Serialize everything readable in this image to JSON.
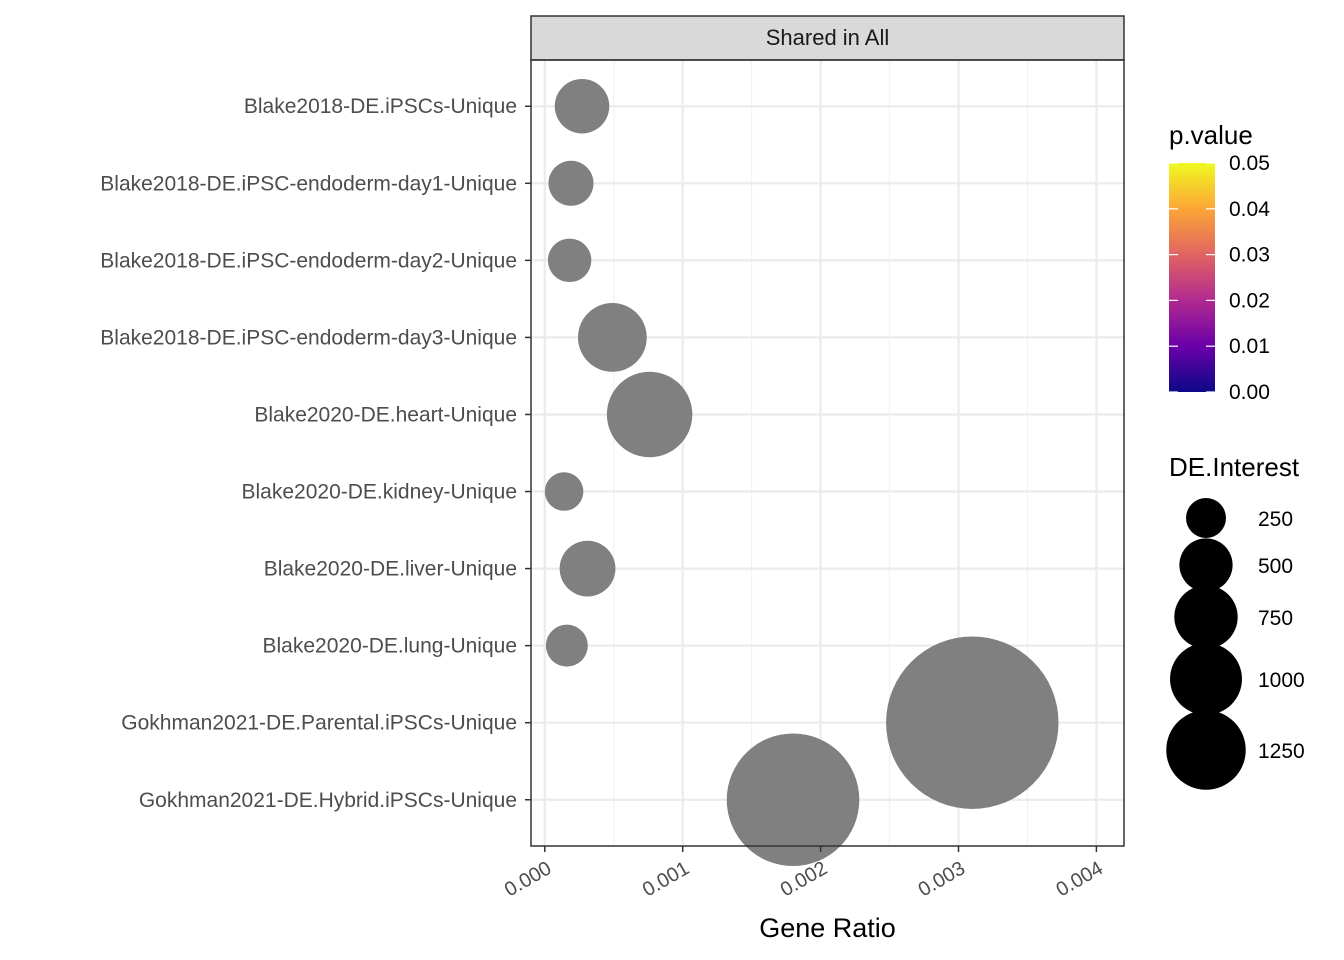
{
  "chart_data": {
    "type": "scatter",
    "panel_title": "Shared in All",
    "xlabel": "Gene Ratio",
    "ylabel": "",
    "xlim": [
      -0.0001,
      0.0042
    ],
    "x_ticks": [
      0.0,
      0.001,
      0.002,
      0.003,
      0.004
    ],
    "x_tick_labels": [
      "0.000",
      "0.001",
      "0.002",
      "0.003",
      "0.004"
    ],
    "categories": [
      "Blake2018-DE.iPSCs-Unique",
      "Blake2018-DE.iPSC-endoderm-day1-Unique",
      "Blake2018-DE.iPSC-endoderm-day2-Unique",
      "Blake2018-DE.iPSC-endoderm-day3-Unique",
      "Blake2020-DE.heart-Unique",
      "Blake2020-DE.kidney-Unique",
      "Blake2020-DE.liver-Unique",
      "Blake2020-DE.lung-Unique",
      "Gokhman2021-DE.Parental.iPSCs-Unique",
      "Gokhman2021-DE.Hybrid.iPSCs-Unique"
    ],
    "points": [
      {
        "category": "Blake2018-DE.iPSCs-Unique",
        "x": 0.00027,
        "size": 110
      },
      {
        "category": "Blake2018-DE.iPSC-endoderm-day1-Unique",
        "x": 0.00019,
        "size": 75
      },
      {
        "category": "Blake2018-DE.iPSC-endoderm-day2-Unique",
        "x": 0.00018,
        "size": 70
      },
      {
        "category": "Blake2018-DE.iPSC-endoderm-day3-Unique",
        "x": 0.00049,
        "size": 175
      },
      {
        "category": "Blake2020-DE.heart-Unique",
        "x": 0.00076,
        "size": 270
      },
      {
        "category": "Blake2020-DE.kidney-Unique",
        "x": 0.00014,
        "size": 55
      },
      {
        "category": "Blake2020-DE.liver-Unique",
        "x": 0.00031,
        "size": 115
      },
      {
        "category": "Blake2020-DE.lung-Unique",
        "x": 0.00016,
        "size": 65
      },
      {
        "category": "Gokhman2021-DE.Parental.iPSCs-Unique",
        "x": 0.0031,
        "size": 1100
      },
      {
        "category": "Gokhman2021-DE.Hybrid.iPSCs-Unique",
        "x": 0.0018,
        "size": 650
      }
    ],
    "point_color": "#808080",
    "grid": true,
    "color_legend": {
      "title": "p.value",
      "ticks": [
        "0.05",
        "0.04",
        "0.03",
        "0.02",
        "0.01",
        "0.00"
      ],
      "tick_values": [
        0.05,
        0.04,
        0.03,
        0.02,
        0.01,
        0.0
      ],
      "range": [
        0.0,
        0.05
      ],
      "colors": [
        "#0d0887",
        "#6a00a8",
        "#b12a90",
        "#e16462",
        "#fca636",
        "#f0f921"
      ]
    },
    "size_legend": {
      "title": "DE.Interest",
      "entries": [
        {
          "label": "250",
          "value": 250
        },
        {
          "label": "500",
          "value": 500
        },
        {
          "label": "750",
          "value": 750
        },
        {
          "label": "1000",
          "value": 1000
        },
        {
          "label": "1250",
          "value": 1250
        }
      ]
    },
    "legend_position": "right"
  }
}
